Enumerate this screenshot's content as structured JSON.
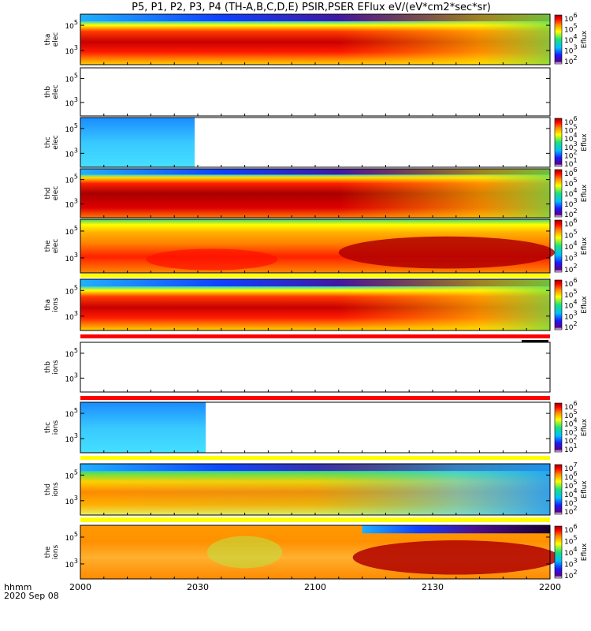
{
  "chart_data": {
    "type": "heatmap",
    "title": "P5, P1, P2, P3, P4 (TH-A,B,C,D,E) PSIR,PSER EFlux eV/(eV*cm2*sec*sr)",
    "xlabel_left": "hhmm",
    "date": "2020 Sep 08",
    "x_ticks": [
      "2000",
      "2030",
      "2100",
      "2130",
      "2200"
    ],
    "colorbar_label": "Eflux",
    "panels": [
      {
        "probe": "tha",
        "species": "elec",
        "y_ticks": [
          "10^5",
          "10^3"
        ],
        "colorbar_ticks": [
          "10^6",
          "10^5",
          "10^4",
          "10^3",
          "10^2"
        ],
        "has_data": true
      },
      {
        "probe": "thb",
        "species": "elec",
        "y_ticks": [
          "10^5",
          "10^3"
        ],
        "colorbar_ticks": [],
        "has_data": false
      },
      {
        "probe": "thc",
        "species": "elec",
        "y_ticks": [
          "10^5",
          "10^3"
        ],
        "colorbar_ticks": [
          "10^6",
          "10^5",
          "10^4",
          "10^3",
          "10^2",
          "10^1"
        ],
        "has_data": true
      },
      {
        "probe": "thd",
        "species": "elec",
        "y_ticks": [
          "10^5",
          "10^3"
        ],
        "colorbar_ticks": [
          "10^6",
          "10^5",
          "10^4",
          "10^3",
          "10^2"
        ],
        "has_data": true
      },
      {
        "probe": "the",
        "species": "elec",
        "y_ticks": [
          "10^5",
          "10^3"
        ],
        "colorbar_ticks": [
          "10^6",
          "10^5",
          "10^4",
          "10^3",
          "10^2"
        ],
        "has_data": true
      },
      {
        "probe": "tha",
        "species": "ions",
        "y_ticks": [
          "10^5",
          "10^3"
        ],
        "colorbar_ticks": [
          "10^6",
          "10^5",
          "10^4",
          "10^3",
          "10^2"
        ],
        "has_data": true
      },
      {
        "probe": "thb",
        "species": "ions",
        "y_ticks": [
          "10^5",
          "10^3"
        ],
        "colorbar_ticks": [],
        "has_data": false
      },
      {
        "probe": "thc",
        "species": "ions",
        "y_ticks": [
          "10^5",
          "10^3"
        ],
        "colorbar_ticks": [
          "10^6",
          "10^5",
          "10^4",
          "10^3",
          "10^2",
          "10^1"
        ],
        "has_data": true
      },
      {
        "probe": "thd",
        "species": "ions",
        "y_ticks": [
          "10^5",
          "10^3"
        ],
        "colorbar_ticks": [
          "10^7",
          "10^6",
          "10^5",
          "10^4",
          "10^3",
          "10^2"
        ],
        "has_data": true
      },
      {
        "probe": "the",
        "species": "ions",
        "y_ticks": [
          "10^5",
          "10^3"
        ],
        "colorbar_ticks": [
          "10^6",
          "10^5",
          "10^4",
          "10^3",
          "10^2"
        ],
        "has_data": true
      }
    ]
  }
}
